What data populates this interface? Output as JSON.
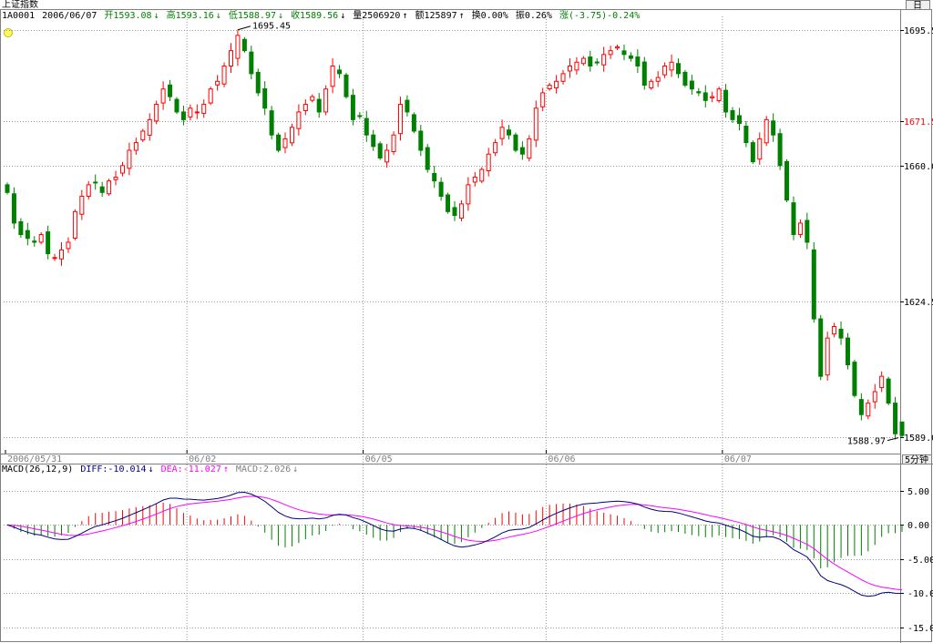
{
  "window": {
    "title": "上证指数",
    "corner_button": "日",
    "period_label": "5分钟"
  },
  "header": {
    "code": "1A0001",
    "date": "2006/06/07",
    "open": "开1593.08",
    "high": "高1593.16",
    "low": "低1588.97",
    "close": "收1589.56",
    "volume": "量2506920",
    "amount": "额125897",
    "turnover": "换0.00%",
    "amplitude": "振0.26%",
    "change": "涨(-3.75)-0.24%"
  },
  "macd_header": {
    "params": "MACD(26,12,9)",
    "diff": "DIFF:-10.014",
    "dea": "DEA:-11.027",
    "macd": "MACD:2.026"
  },
  "colors": {
    "up": "#ff0000",
    "down": "#008000",
    "diff": "#000080",
    "dea": "#ff00ff",
    "grid": "#9a9a9a",
    "highlight_level": "#ff0000"
  },
  "chart_data": [
    {
      "type": "candlestick",
      "timeframe": "5分钟",
      "session_dates": [
        "2006/05/31",
        "06/02",
        "06/05",
        "06/06",
        "06/07"
      ],
      "y_ticks": [
        1695.5,
        1671.5,
        1660.0,
        1624.5,
        1589.0
      ],
      "highlight_tick": 1671.5,
      "ylim": [
        1586.5,
        1698
      ],
      "grid": true,
      "annotations": [
        {
          "label": "1695.45",
          "value": 1695.45,
          "type": "max"
        },
        {
          "label": "1588.97",
          "value": 1588.97,
          "type": "min"
        }
      ],
      "closes": [
        1653.0,
        1645.0,
        1642.0,
        1641.0,
        1640.0,
        1642.0,
        1637.0,
        1636.0,
        1638.0,
        1640.0,
        1648.0,
        1652.0,
        1655.0,
        1655.5,
        1653.0,
        1656.0,
        1657.0,
        1660.0,
        1664.0,
        1666.0,
        1669.0,
        1672.0,
        1676.0,
        1680.0,
        1678.0,
        1674.0,
        1672.0,
        1675.0,
        1674.0,
        1676.0,
        1680.0,
        1682.0,
        1686.0,
        1690.0,
        1694.0,
        1690.0,
        1684.0,
        1679.0,
        1675.0,
        1668.0,
        1664.0,
        1667.0,
        1670.0,
        1674.0,
        1676.0,
        1678.0,
        1674.0,
        1680.0,
        1686.0,
        1684.0,
        1678.0,
        1672.0,
        1673.0,
        1668.0,
        1665.0,
        1662.0,
        1664.0,
        1668.0,
        1676.0,
        1674.0,
        1669.0,
        1664.0,
        1659.0,
        1656.0,
        1652.0,
        1648.0,
        1647.0,
        1650.0,
        1655.0,
        1657.0,
        1659.0,
        1663.0,
        1666.0,
        1670.0,
        1668.0,
        1664.0,
        1663.0,
        1667.0,
        1675.0,
        1679.0,
        1681.0,
        1682.0,
        1684.0,
        1686.0,
        1687.0,
        1688.0,
        1686.0,
        1687.0,
        1689.0,
        1690.0,
        1691.0,
        1689.0,
        1688.0,
        1686.0,
        1681.0,
        1682.0,
        1683.0,
        1686.0,
        1687.0,
        1684.0,
        1681.0,
        1680.0,
        1679.0,
        1677.0,
        1678.0,
        1680.0,
        1674.0,
        1672.0,
        1671.0,
        1666.0,
        1661.0,
        1667.0,
        1672.0,
        1668.0,
        1660.0,
        1651.0,
        1642.0,
        1645.0,
        1640.0,
        1620.0,
        1605.0,
        1615.0,
        1618.0,
        1615.0,
        1608.0,
        1600.0,
        1595.0,
        1598.0,
        1601.0,
        1605.0,
        1598.0,
        1590.0,
        1589.56
      ],
      "major_candles": [
        {
          "index": 34,
          "open": 1688.0,
          "high": 1695.45,
          "low": 1686.0,
          "close": 1694.0
        },
        {
          "index": 119,
          "open": 1638.0,
          "high": 1640.0,
          "low": 1619.0,
          "close": 1620.0
        },
        {
          "index": 120,
          "open": 1620.0,
          "high": 1621.0,
          "low": 1604.0,
          "close": 1605.0
        },
        {
          "index": 132,
          "open": 1593.08,
          "high": 1593.16,
          "low": 1588.97,
          "close": 1589.56
        }
      ]
    },
    {
      "type": "macd",
      "params": [
        26,
        12,
        9
      ],
      "y_ticks": [
        5.0,
        0.0,
        -5.0,
        -10.0,
        -15.0
      ],
      "ylim": [
        -17,
        7.5
      ],
      "last_values": {
        "DIFF": -10.014,
        "DEA": -11.027,
        "MACD": 2.026
      },
      "series": [
        {
          "name": "DIFF",
          "role": "line"
        },
        {
          "name": "DEA",
          "role": "line"
        },
        {
          "name": "MACD",
          "role": "histogram"
        }
      ]
    }
  ]
}
